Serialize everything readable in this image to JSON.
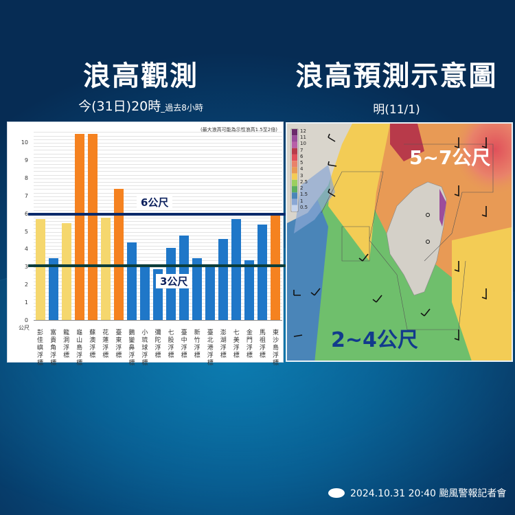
{
  "header": {
    "left_title": "浪高觀測",
    "left_subtitle_main": "今(31日)20時",
    "left_subtitle_small": "_過去8小時",
    "right_title": "浪高預測示意圖",
    "right_subtitle": "明(11/1)"
  },
  "chart_data": {
    "type": "bar",
    "title": "浪高觀測",
    "subtitle": "今(31日)20時_過去8小時",
    "note": "(最大浪高可能為示性浪高1.5至2倍)",
    "xlabel": "",
    "ylabel": "公尺",
    "ylim": [
      0,
      10.7
    ],
    "yticks": [
      0,
      1,
      2,
      3,
      4,
      5,
      6,
      7,
      8,
      9,
      10
    ],
    "grid": true,
    "categories": [
      "彭佳嶼浮標",
      "富貴角浮標",
      "龍洞浮標",
      "龜山島浮標",
      "蘇澳浮標",
      "花蓮浮標",
      "臺東浮標",
      "鵝鑾鼻浮標",
      "小琉球浮標",
      "彌陀浮標",
      "七股浮標",
      "臺中浮標",
      "新竹浮標",
      "臺北港浮標",
      "澎湖浮標",
      "七美浮標",
      "金門浮標",
      "馬祖浮標",
      "東沙島浮標"
    ],
    "values": [
      5.7,
      3.5,
      5.5,
      10.5,
      10.5,
      5.8,
      7.4,
      4.4,
      3.0,
      2.9,
      4.1,
      4.8,
      3.5,
      3.1,
      4.6,
      5.7,
      3.4,
      5.4,
      6.0
    ],
    "bar_colors": [
      "#f5d76e",
      "#1f77c8",
      "#f5d76e",
      "#f58220",
      "#f58220",
      "#f5d76e",
      "#f58220",
      "#1f77c8",
      "#1f77c8",
      "#1f77c8",
      "#1f77c8",
      "#1f77c8",
      "#1f77c8",
      "#1f77c8",
      "#1f77c8",
      "#1f77c8",
      "#1f77c8",
      "#1f77c8",
      "#f58220"
    ],
    "reference_lines": [
      {
        "value": 6,
        "label": "6公尺",
        "color": "#0a2a6b"
      },
      {
        "value": 3.1,
        "label": "3公尺",
        "color": "#0b3d3a"
      }
    ]
  },
  "map": {
    "legend_values": [
      "12",
      "11",
      "10",
      "7",
      "6",
      "5",
      "4",
      "3",
      "2.5",
      "2",
      "1.5",
      "1",
      "0.5"
    ],
    "legend_colors": [
      "#6b2a6b",
      "#9b4d9b",
      "#b85fa8",
      "#b83a4a",
      "#e0505a",
      "#e9826a",
      "#e89a55",
      "#f3cc55",
      "#9ccf5f",
      "#5cae5e",
      "#4a85b8",
      "#8aa7d4",
      "#c5d4ee"
    ],
    "north_label": "5~7公尺",
    "south_label": "2~4公尺"
  },
  "footer": {
    "text": "2024.10.31  20:40 颱風警報記者會"
  }
}
